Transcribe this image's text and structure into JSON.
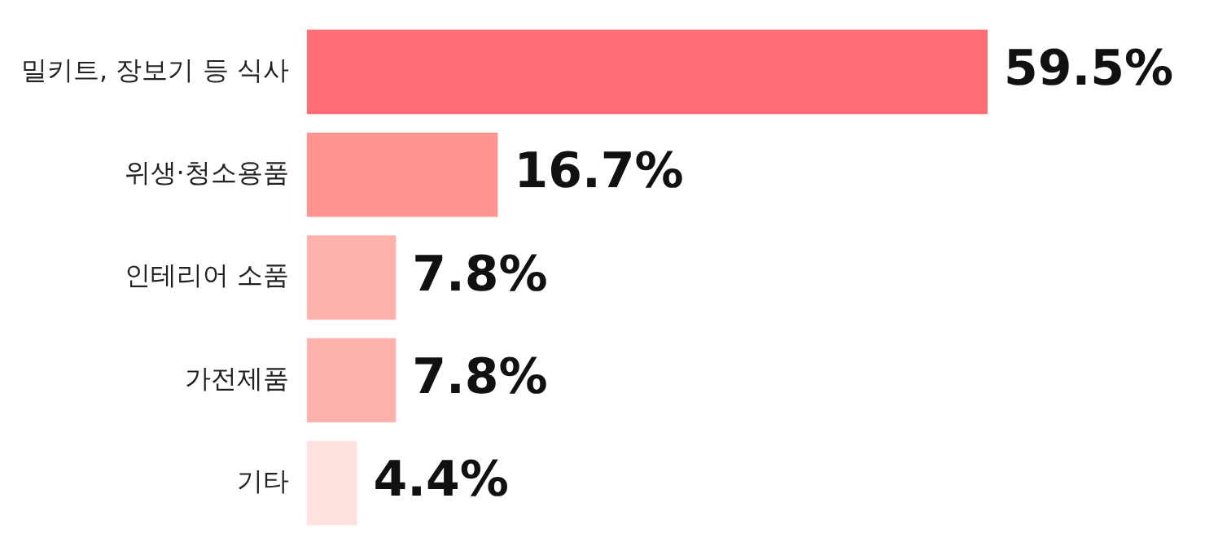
{
  "chart_data": {
    "type": "bar",
    "orientation": "horizontal",
    "categories": [
      "밀키트, 장보기 등 식사",
      "위생·청소용품",
      "인테리어 소품",
      "가전제품",
      "기타"
    ],
    "values": [
      59.5,
      16.7,
      7.8,
      7.8,
      4.4
    ],
    "colors": [
      "#ff6e75",
      "#ff9491",
      "#ffb1ab",
      "#ffb1ab",
      "#ffe3e1"
    ],
    "value_labels": [
      "59.5%",
      "16.7%",
      "7.8%",
      "7.8%",
      "4.4%"
    ],
    "legend": false
  }
}
